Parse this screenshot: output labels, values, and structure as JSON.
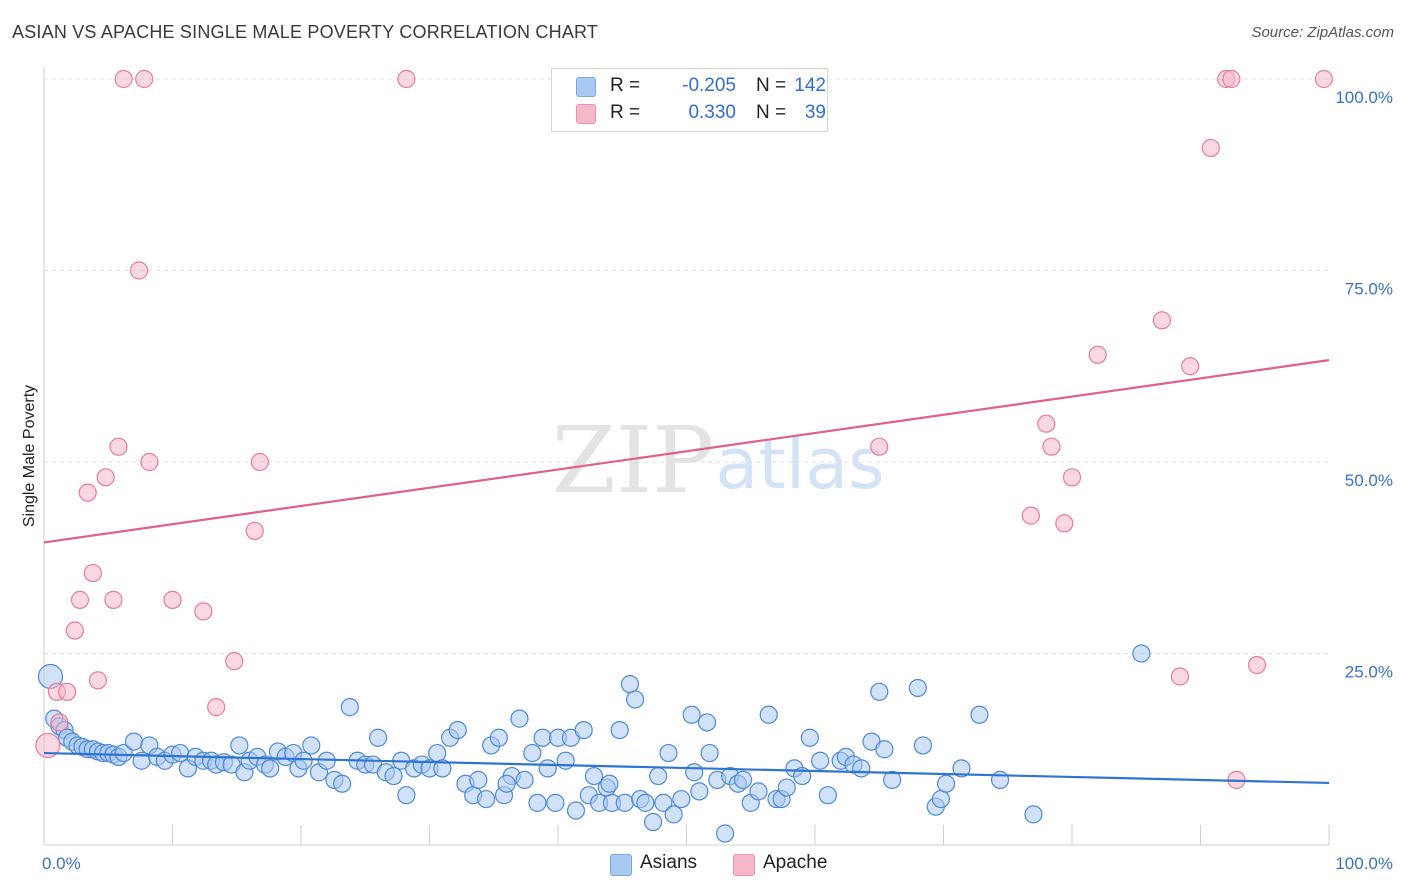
{
  "title": "ASIAN VS APACHE SINGLE MALE POVERTY CORRELATION CHART",
  "source": "Source: ZipAtlas.com",
  "watermark": {
    "zip": "ZIP",
    "atlas": "atlas"
  },
  "legend_top": [
    {
      "r_label": "R =",
      "r_value": "-0.205",
      "n_label": "N =",
      "n_value": "142",
      "color": "#a9c9f2"
    },
    {
      "r_label": "R =",
      "r_value": "0.330",
      "n_label": "N =",
      "n_value": "39",
      "color": "#f6b8c9"
    }
  ],
  "chart_data": {
    "type": "scatter",
    "title": "ASIAN VS APACHE SINGLE MALE POVERTY CORRELATION CHART",
    "xlabel": "",
    "ylabel": "Single Male Poverty",
    "xlim": [
      0,
      100
    ],
    "ylim": [
      0,
      100
    ],
    "x_tick_labels": [
      "0.0%",
      "100.0%"
    ],
    "y_tick_labels": [
      "25.0%",
      "50.0%",
      "75.0%",
      "100.0%"
    ],
    "y_ticks": [
      25,
      50,
      75,
      100
    ],
    "grid": true,
    "legend_position": "bottom",
    "series": [
      {
        "name": "Asians",
        "color": "#a9c9f2",
        "stroke": "#4d8ad8",
        "trend": {
          "color": "#2f74d0",
          "x": [
            0,
            100
          ],
          "y": [
            12.0,
            8.1
          ]
        },
        "points": [
          [
            0.5,
            22
          ],
          [
            0.8,
            16.5
          ],
          [
            1.2,
            15.5
          ],
          [
            1.6,
            15
          ],
          [
            1.8,
            14
          ],
          [
            2.2,
            13.5
          ],
          [
            2.6,
            13
          ],
          [
            3,
            12.8
          ],
          [
            3.4,
            12.5
          ],
          [
            3.8,
            12.5
          ],
          [
            4.2,
            12.2
          ],
          [
            4.6,
            12
          ],
          [
            5,
            12
          ],
          [
            5.4,
            11.8
          ],
          [
            5.8,
            11.5
          ],
          [
            6.2,
            12
          ],
          [
            7,
            13.5
          ],
          [
            7.6,
            11
          ],
          [
            8.2,
            13
          ],
          [
            8.8,
            11.5
          ],
          [
            9.4,
            11
          ],
          [
            10,
            11.8
          ],
          [
            10.6,
            12
          ],
          [
            11.2,
            10
          ],
          [
            11.8,
            11.5
          ],
          [
            12.4,
            11
          ],
          [
            13,
            11
          ],
          [
            13.4,
            10.5
          ],
          [
            14,
            10.8
          ],
          [
            14.6,
            10.5
          ],
          [
            15.2,
            13
          ],
          [
            15.6,
            9.5
          ],
          [
            16,
            11
          ],
          [
            16.6,
            11.5
          ],
          [
            17.2,
            10.5
          ],
          [
            17.6,
            10
          ],
          [
            18.2,
            12.2
          ],
          [
            18.8,
            11.5
          ],
          [
            19.4,
            12
          ],
          [
            19.8,
            10
          ],
          [
            20.2,
            11
          ],
          [
            20.8,
            13
          ],
          [
            21.4,
            9.5
          ],
          [
            22,
            11
          ],
          [
            22.6,
            8.5
          ],
          [
            23.2,
            8
          ],
          [
            23.8,
            18
          ],
          [
            24.4,
            11
          ],
          [
            25,
            10.5
          ],
          [
            25.6,
            10.5
          ],
          [
            26,
            14
          ],
          [
            26.6,
            9.5
          ],
          [
            27.2,
            9
          ],
          [
            27.8,
            11
          ],
          [
            28.2,
            6.5
          ],
          [
            28.8,
            10
          ],
          [
            29.4,
            10.5
          ],
          [
            30,
            10
          ],
          [
            30.6,
            12
          ],
          [
            31,
            10
          ],
          [
            31.6,
            14
          ],
          [
            32.2,
            15
          ],
          [
            32.8,
            8
          ],
          [
            33.4,
            6.5
          ],
          [
            33.8,
            8.5
          ],
          [
            34.4,
            6
          ],
          [
            34.8,
            13
          ],
          [
            35.4,
            14
          ],
          [
            35.8,
            6.5
          ],
          [
            36.4,
            9
          ],
          [
            37,
            16.5
          ],
          [
            37.4,
            8.5
          ],
          [
            38,
            12
          ],
          [
            38.4,
            5.5
          ],
          [
            38.8,
            14
          ],
          [
            39.2,
            10
          ],
          [
            39.8,
            5.5
          ],
          [
            40,
            14
          ],
          [
            40.6,
            11
          ],
          [
            41,
            14
          ],
          [
            41.4,
            4.5
          ],
          [
            42,
            15
          ],
          [
            42.4,
            6.5
          ],
          [
            42.8,
            9
          ],
          [
            43.2,
            5.5
          ],
          [
            43.8,
            7.5
          ],
          [
            44.2,
            5.5
          ],
          [
            44.8,
            15
          ],
          [
            45.2,
            5.5
          ],
          [
            45.6,
            21
          ],
          [
            46,
            19
          ],
          [
            46.4,
            6
          ],
          [
            46.8,
            5.5
          ],
          [
            47.4,
            3
          ],
          [
            47.8,
            9
          ],
          [
            48.2,
            5.5
          ],
          [
            48.6,
            12
          ],
          [
            49,
            4
          ],
          [
            49.6,
            6
          ],
          [
            50.4,
            17
          ],
          [
            51,
            7
          ],
          [
            51.6,
            16
          ],
          [
            51.8,
            12
          ],
          [
            52.4,
            8.5
          ],
          [
            53,
            1.5
          ],
          [
            53.4,
            9
          ],
          [
            54,
            8
          ],
          [
            54.4,
            8.5
          ],
          [
            55,
            5.5
          ],
          [
            55.6,
            7
          ],
          [
            56.4,
            17
          ],
          [
            57,
            6
          ],
          [
            57.4,
            6
          ],
          [
            57.8,
            7.5
          ],
          [
            58.4,
            10
          ],
          [
            59,
            9
          ],
          [
            59.6,
            14
          ],
          [
            60.4,
            11
          ],
          [
            61,
            6.5
          ],
          [
            62,
            11
          ],
          [
            62.4,
            11.5
          ],
          [
            63,
            10.5
          ],
          [
            63.6,
            10
          ],
          [
            64.4,
            13.5
          ],
          [
            65,
            20
          ],
          [
            65.4,
            12.5
          ],
          [
            66,
            8.5
          ],
          [
            68,
            20.5
          ],
          [
            68.4,
            13
          ],
          [
            69.4,
            5
          ],
          [
            69.8,
            6
          ],
          [
            70.2,
            8
          ],
          [
            71.4,
            10
          ],
          [
            72.8,
            17
          ],
          [
            74.4,
            8.5
          ],
          [
            77,
            4
          ],
          [
            85.4,
            25
          ],
          [
            50.6,
            9.5
          ],
          [
            44,
            8
          ],
          [
            36,
            8
          ]
        ]
      },
      {
        "name": "Apache",
        "color": "#f6b8c9",
        "stroke": "#e87a9a",
        "trend": {
          "color": "#e0608a",
          "x": [
            0,
            100
          ],
          "y": [
            39.5,
            63.3
          ]
        },
        "points": [
          [
            0.3,
            13
          ],
          [
            1,
            20
          ],
          [
            1.8,
            20
          ],
          [
            2.4,
            28
          ],
          [
            2.8,
            32
          ],
          [
            3.4,
            46
          ],
          [
            3.8,
            35.5
          ],
          [
            4.2,
            21.5
          ],
          [
            4.8,
            48
          ],
          [
            5.4,
            32
          ],
          [
            5.8,
            52
          ],
          [
            6.2,
            100
          ],
          [
            7.4,
            75
          ],
          [
            7.8,
            100
          ],
          [
            8.2,
            50
          ],
          [
            10,
            32
          ],
          [
            12.4,
            30.5
          ],
          [
            13.4,
            18
          ],
          [
            14.8,
            24
          ],
          [
            16.4,
            41
          ],
          [
            16.8,
            50
          ],
          [
            28.2,
            100
          ],
          [
            65,
            52
          ],
          [
            76.8,
            43
          ],
          [
            78,
            55
          ],
          [
            78.4,
            52
          ],
          [
            79.4,
            42
          ],
          [
            80,
            48
          ],
          [
            82,
            64
          ],
          [
            87,
            68.5
          ],
          [
            88.4,
            22
          ],
          [
            89.2,
            62.5
          ],
          [
            90.8,
            91
          ],
          [
            92,
            100
          ],
          [
            92.4,
            100
          ],
          [
            92.8,
            8.5
          ],
          [
            94.4,
            23.5
          ],
          [
            99.6,
            100
          ],
          [
            1.2,
            16
          ]
        ]
      }
    ]
  },
  "bottom_legend": [
    {
      "label": "Asians",
      "color": "#a9c9f2"
    },
    {
      "label": "Apache",
      "color": "#f6b8c9"
    }
  ]
}
